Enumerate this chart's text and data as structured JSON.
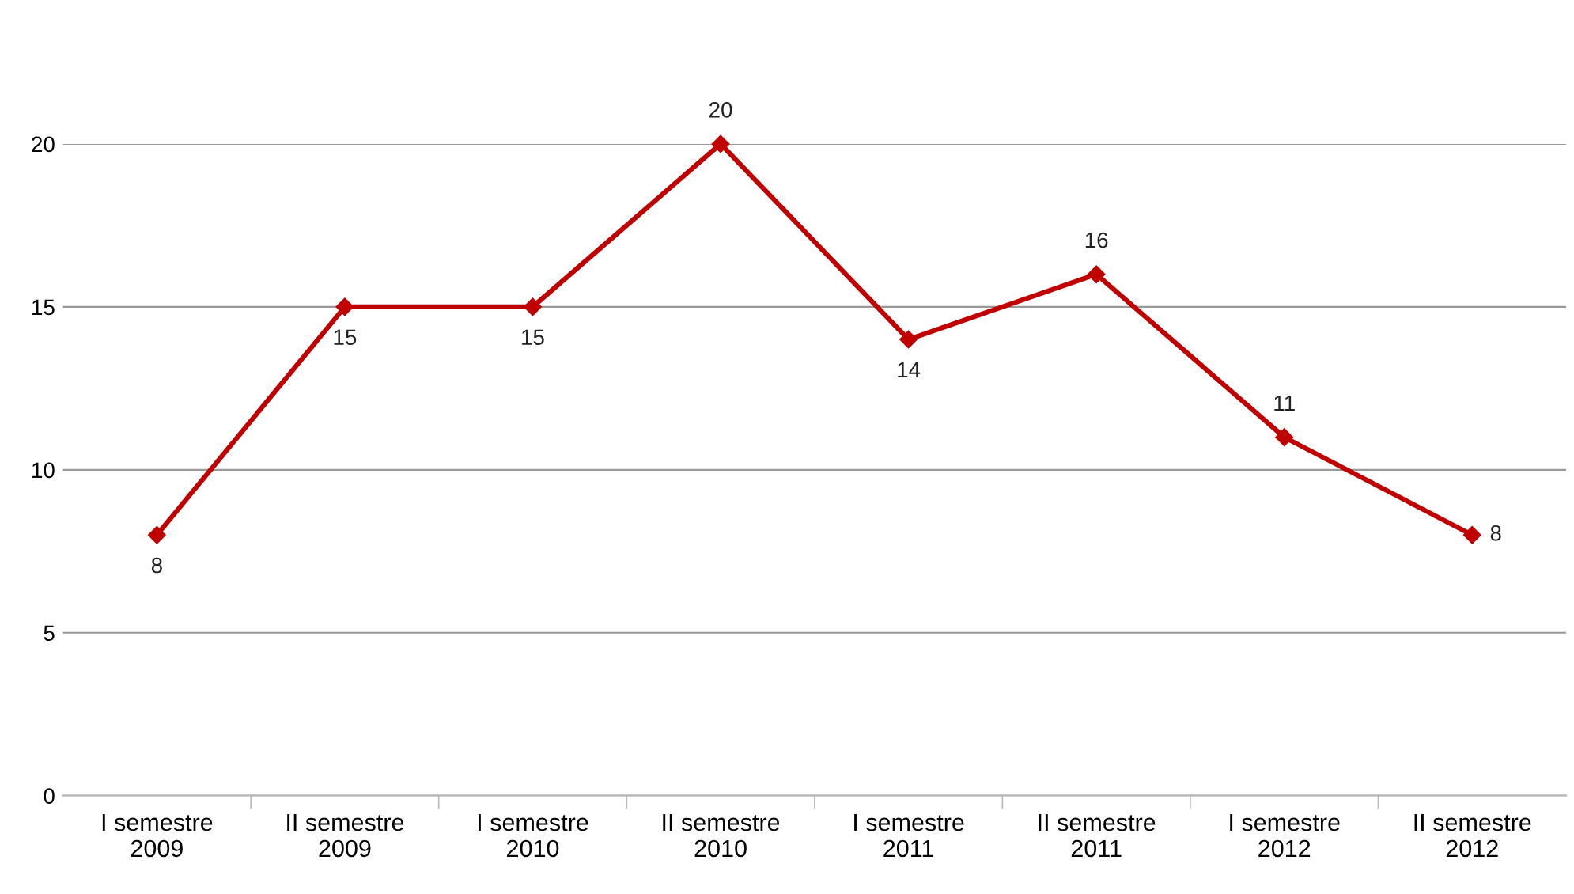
{
  "chart_data": {
    "type": "line",
    "categories": [
      "I semestre\n2009",
      "II semestre\n2009",
      "I semestre\n2010",
      "II semestre\n2010",
      "I semestre\n2011",
      "II semestre\n2011",
      "I semestre\n2012",
      "II semestre\n2012"
    ],
    "series": [
      {
        "color": "#c00000",
        "values": [
          8,
          15,
          15,
          20,
          14,
          16,
          11,
          8
        ]
      }
    ],
    "ylim": [
      0,
      20
    ],
    "yticks": [
      0,
      5,
      10,
      15,
      20
    ],
    "grid": "y",
    "marker": "diamond",
    "line_style": "solid",
    "data_labels": true
  }
}
